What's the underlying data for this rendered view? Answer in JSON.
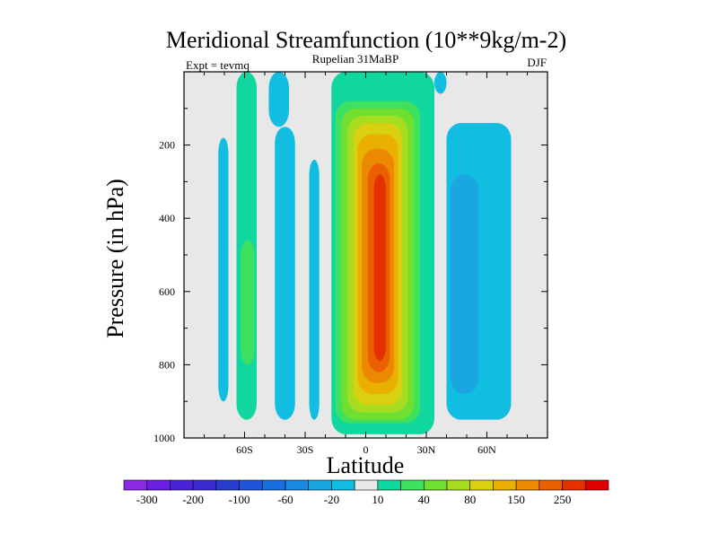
{
  "chart_data": {
    "type": "heatmap",
    "subtype": "filled-contour",
    "title": "Meridional Streamfunction (10**9kg/m-2)",
    "subtitle": "Rupelian  31MaBP",
    "left_label": "Expt = tevmq",
    "right_label": "DJF",
    "xlabel": "Latitude",
    "ylabel": "Pressure (in hPa)",
    "xlim": [
      -90,
      90
    ],
    "ylim": [
      1000,
      0
    ],
    "x_ticks": [
      -60,
      -30,
      0,
      30,
      60
    ],
    "x_tick_labels": [
      "60S",
      "30S",
      "0",
      "30N",
      "60N"
    ],
    "y_ticks": [
      200,
      400,
      600,
      800,
      1000
    ],
    "y_tick_labels": [
      "200",
      "400",
      "600",
      "800",
      "1000"
    ],
    "colorbar": {
      "levels": [
        -300,
        -250,
        -200,
        -150,
        -100,
        -80,
        -60,
        -40,
        -20,
        -10,
        10,
        20,
        40,
        60,
        80,
        100,
        150,
        200,
        250,
        300
      ],
      "labels": [
        "-300",
        "-200",
        "-100",
        "-60",
        "-20",
        "10",
        "40",
        "80",
        "150",
        "250"
      ],
      "colors": [
        "#8a2be2",
        "#6a1ee0",
        "#4b22d8",
        "#3a2ad0",
        "#2a3bd0",
        "#1f55d8",
        "#1a6fe0",
        "#1a88e2",
        "#1aa6e0",
        "#11bde0",
        "#e8e8e8",
        "#10d6a0",
        "#3ee060",
        "#70e030",
        "#a8dc20",
        "#d8d010",
        "#eab000",
        "#eb8a00",
        "#ea6000",
        "#e53000",
        "#e10000"
      ]
    },
    "regions": [
      {
        "label": "10",
        "x_range": [
          -95,
          95
        ],
        "p_range": [
          0,
          1000
        ],
        "color": "#e8e8e8"
      },
      {
        "label": "-10",
        "x_range": [
          -73,
          -68
        ],
        "p_range": [
          180,
          900
        ],
        "color": "#11bde0"
      },
      {
        "label": "10",
        "x_range": [
          -64,
          -54
        ],
        "p_range": [
          0,
          950
        ],
        "color": "#10d6a0"
      },
      {
        "label": "20",
        "x_range": [
          -62,
          -55
        ],
        "p_range": [
          460,
          800
        ],
        "color": "#3ee060"
      },
      {
        "label": "-10",
        "x_range": [
          -48,
          -38
        ],
        "p_range": [
          0,
          150
        ],
        "color": "#11bde0"
      },
      {
        "label": "-10",
        "x_range": [
          -45,
          -35
        ],
        "p_range": [
          150,
          950
        ],
        "color": "#11bde0"
      },
      {
        "label": "-10",
        "x_range": [
          -28,
          -23
        ],
        "p_range": [
          240,
          950
        ],
        "color": "#11bde0"
      },
      {
        "label": "-10",
        "x_range": [
          -3,
          3
        ],
        "p_range": [
          0,
          100
        ],
        "color": "#11bde0"
      },
      {
        "label": "10",
        "x_range": [
          -17,
          34
        ],
        "p_range": [
          0,
          990
        ],
        "color": "#10d6a0"
      },
      {
        "label": "20",
        "x_range": [
          -15,
          27
        ],
        "p_range": [
          80,
          960
        ],
        "color": "#3ee060"
      },
      {
        "label": "40",
        "x_range": [
          -12,
          24
        ],
        "p_range": [
          100,
          950
        ],
        "color": "#70e030"
      },
      {
        "label": "60",
        "x_range": [
          -9,
          21
        ],
        "p_range": [
          120,
          930
        ],
        "color": "#a8dc20"
      },
      {
        "label": "80",
        "x_range": [
          -6,
          18
        ],
        "p_range": [
          140,
          910
        ],
        "color": "#d8d010"
      },
      {
        "label": "100",
        "x_range": [
          -4,
          16
        ],
        "p_range": [
          170,
          880
        ],
        "color": "#eab000"
      },
      {
        "label": "150",
        "x_range": [
          -2,
          14
        ],
        "p_range": [
          210,
          850
        ],
        "color": "#eb8a00"
      },
      {
        "label": "200",
        "x_range": [
          1,
          12
        ],
        "p_range": [
          250,
          820
        ],
        "color": "#ea6000"
      },
      {
        "label": "250",
        "x_range": [
          4,
          10
        ],
        "p_range": [
          280,
          790
        ],
        "color": "#e53000"
      },
      {
        "label": "-10",
        "x_range": [
          34,
          40
        ],
        "p_range": [
          0,
          60
        ],
        "color": "#11bde0"
      },
      {
        "label": "-10",
        "x_range": [
          40,
          72
        ],
        "p_range": [
          140,
          950
        ],
        "color": "#11bde0"
      },
      {
        "label": "-20",
        "x_range": [
          42,
          56
        ],
        "p_range": [
          280,
          880
        ],
        "color": "#1aa6e0"
      }
    ]
  }
}
